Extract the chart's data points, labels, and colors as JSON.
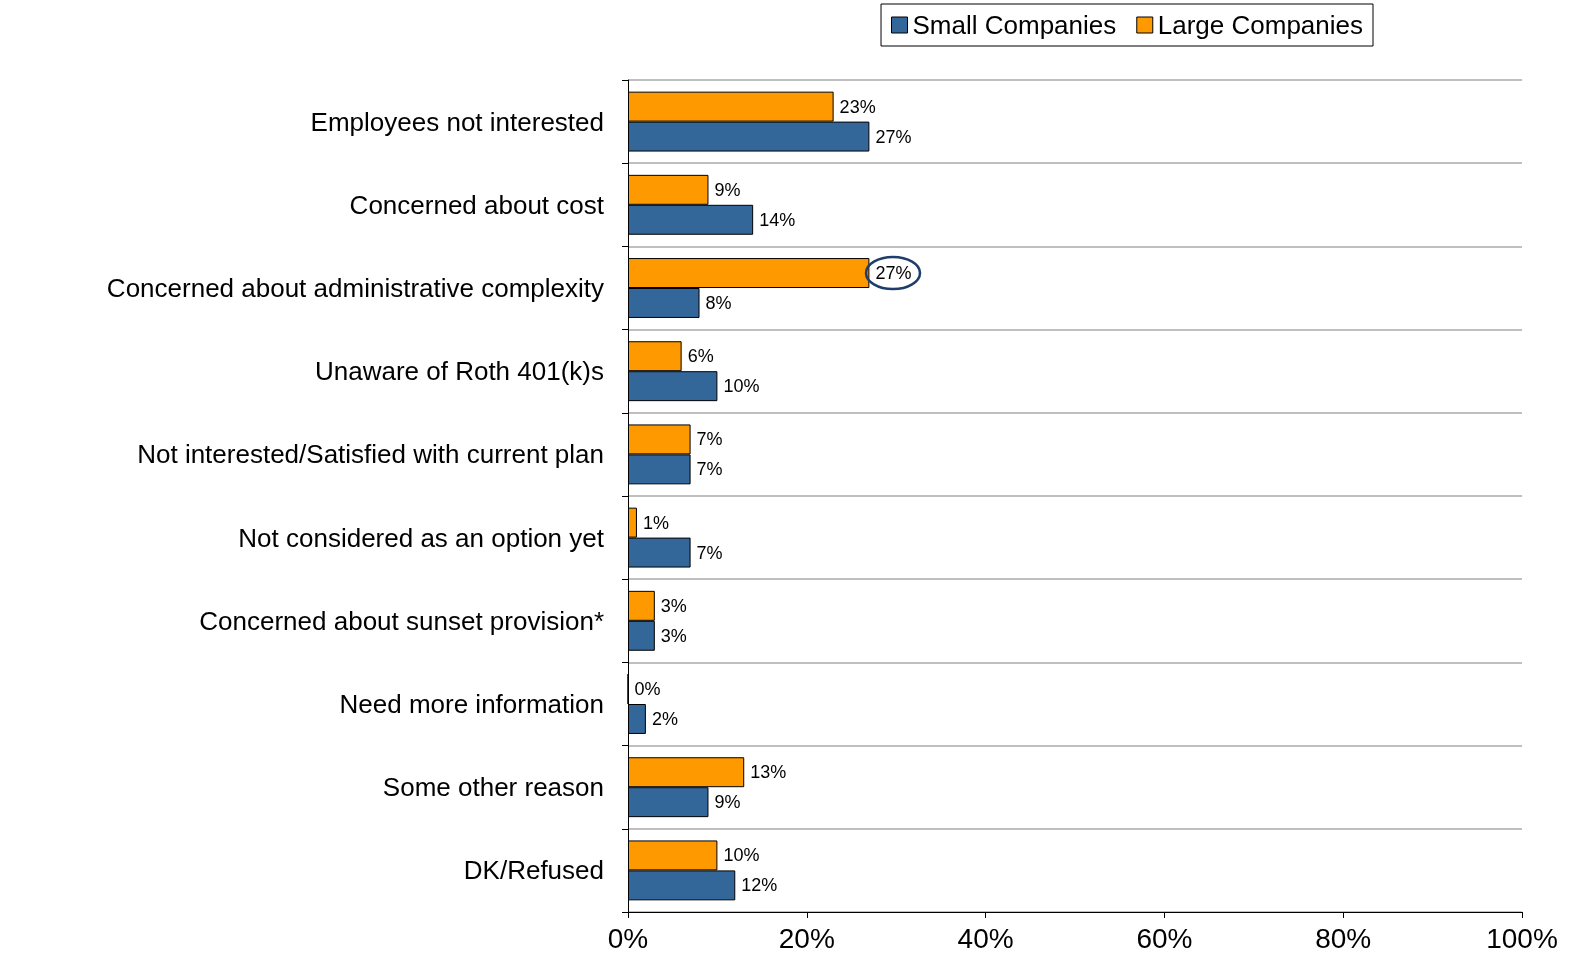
{
  "chart_data": {
    "type": "bar",
    "orientation": "horizontal",
    "categories": [
      "Employees not interested",
      "Concerned about cost",
      "Concerned about administrative complexity",
      "Unaware of Roth 401(k)s",
      "Not interested/Satisfied with current plan",
      "Not considered as an option yet",
      "Concerned about sunset provision*",
      "Need more information",
      "Some other reason",
      "DK/Refused"
    ],
    "series": [
      {
        "name": "Small Companies",
        "color": "#336699",
        "values": [
          27,
          14,
          8,
          10,
          7,
          7,
          3,
          2,
          9,
          12
        ],
        "value_labels": [
          "27%",
          "14%",
          "8%",
          "10%",
          "7%",
          "7%",
          "3%",
          "2%",
          "9%",
          "12%"
        ]
      },
      {
        "name": "Large Companies",
        "color": "#ff9900",
        "values": [
          23,
          9,
          27,
          6,
          7,
          1,
          3,
          0,
          13,
          10
        ],
        "value_labels": [
          "23%",
          "9%",
          "27%",
          "6%",
          "7%",
          "1%",
          "3%",
          "0%",
          "13%",
          "10%"
        ]
      }
    ],
    "xlim": [
      0,
      100
    ],
    "xticks": [
      {
        "value": 0,
        "label": "0%"
      },
      {
        "value": 20,
        "label": "20%"
      },
      {
        "value": 40,
        "label": "40%"
      },
      {
        "value": 60,
        "label": "60%"
      },
      {
        "value": 80,
        "label": "80%"
      },
      {
        "value": 100,
        "label": "100%"
      }
    ],
    "grid": "y",
    "legend": "top right"
  }
}
